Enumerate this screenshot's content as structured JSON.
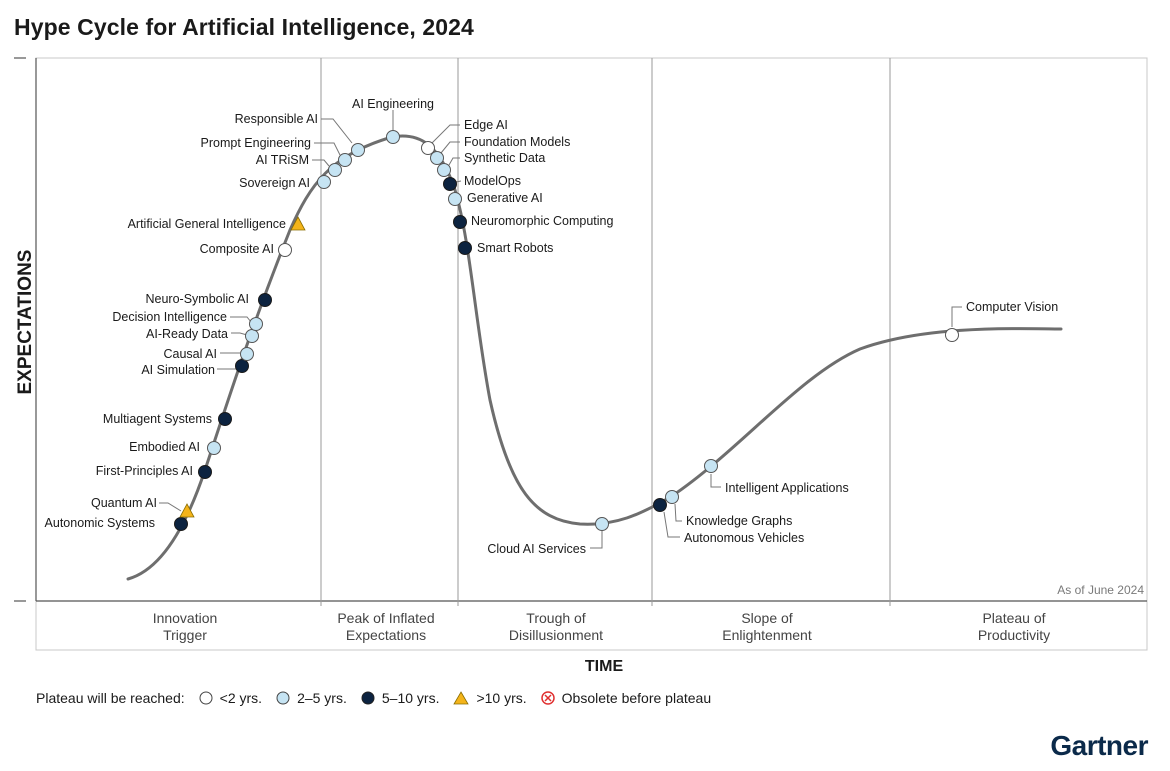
{
  "title": "Hype Cycle for Artificial Intelligence, 2024",
  "y_axis_label": "EXPECTATIONS",
  "x_axis_label": "TIME",
  "as_of": "As of June 2024",
  "legend_title": "Plateau will be reached:",
  "legend": [
    {
      "key": "lt2",
      "label": "<2 yrs."
    },
    {
      "key": "2to5",
      "label": "2–5 yrs."
    },
    {
      "key": "5to10",
      "label": "5–10 yrs."
    },
    {
      "key": "gt10",
      "label": ">10 yrs."
    },
    {
      "key": "obsolete",
      "label": "Obsolete before plateau"
    }
  ],
  "colors": {
    "lt2": "#ffffff",
    "2to5": "#c6e4f3",
    "5to10": "#0c2340",
    "gt10": "#f4b41a",
    "obsolete": "#e03030",
    "curve": "#6e6e6e",
    "divider": "#9a9a9a"
  },
  "brand": "Gartner",
  "chart_data": {
    "type": "hype-cycle",
    "phases": [
      {
        "label_line1": "Innovation",
        "label_line2": "Trigger"
      },
      {
        "label_line1": "Peak of Inflated",
        "label_line2": "Expectations"
      },
      {
        "label_line1": "Trough of",
        "label_line2": "Disillusionment"
      },
      {
        "label_line1": "Slope of",
        "label_line2": "Enlightenment"
      },
      {
        "label_line1": "Plateau of",
        "label_line2": "Productivity"
      }
    ],
    "technologies": [
      {
        "name": "Autonomic Systems",
        "category": "5to10"
      },
      {
        "name": "Quantum AI",
        "category": "gt10"
      },
      {
        "name": "First-Principles AI",
        "category": "5to10"
      },
      {
        "name": "Embodied AI",
        "category": "2to5"
      },
      {
        "name": "Multiagent Systems",
        "category": "5to10"
      },
      {
        "name": "AI Simulation",
        "category": "5to10"
      },
      {
        "name": "Causal AI",
        "category": "2to5"
      },
      {
        "name": "AI-Ready Data",
        "category": "2to5"
      },
      {
        "name": "Decision Intelligence",
        "category": "2to5"
      },
      {
        "name": "Neuro-Symbolic AI",
        "category": "5to10"
      },
      {
        "name": "Composite AI",
        "category": "lt2"
      },
      {
        "name": "Artificial General Intelligence",
        "category": "gt10"
      },
      {
        "name": "Sovereign AI",
        "category": "2to5"
      },
      {
        "name": "AI TRiSM",
        "category": "2to5"
      },
      {
        "name": "Prompt Engineering",
        "category": "2to5"
      },
      {
        "name": "Responsible AI",
        "category": "2to5"
      },
      {
        "name": "AI Engineering",
        "category": "2to5"
      },
      {
        "name": "Edge AI",
        "category": "lt2"
      },
      {
        "name": "Foundation Models",
        "category": "2to5"
      },
      {
        "name": "Synthetic Data",
        "category": "2to5"
      },
      {
        "name": "ModelOps",
        "category": "5to10"
      },
      {
        "name": "Generative AI",
        "category": "2to5"
      },
      {
        "name": "Neuromorphic Computing",
        "category": "5to10"
      },
      {
        "name": "Smart Robots",
        "category": "5to10"
      },
      {
        "name": "Cloud AI Services",
        "category": "2to5"
      },
      {
        "name": "Autonomous Vehicles",
        "category": "5to10"
      },
      {
        "name": "Knowledge Graphs",
        "category": "2to5"
      },
      {
        "name": "Intelligent Applications",
        "category": "2to5"
      },
      {
        "name": "Computer Vision",
        "category": "lt2"
      }
    ]
  }
}
